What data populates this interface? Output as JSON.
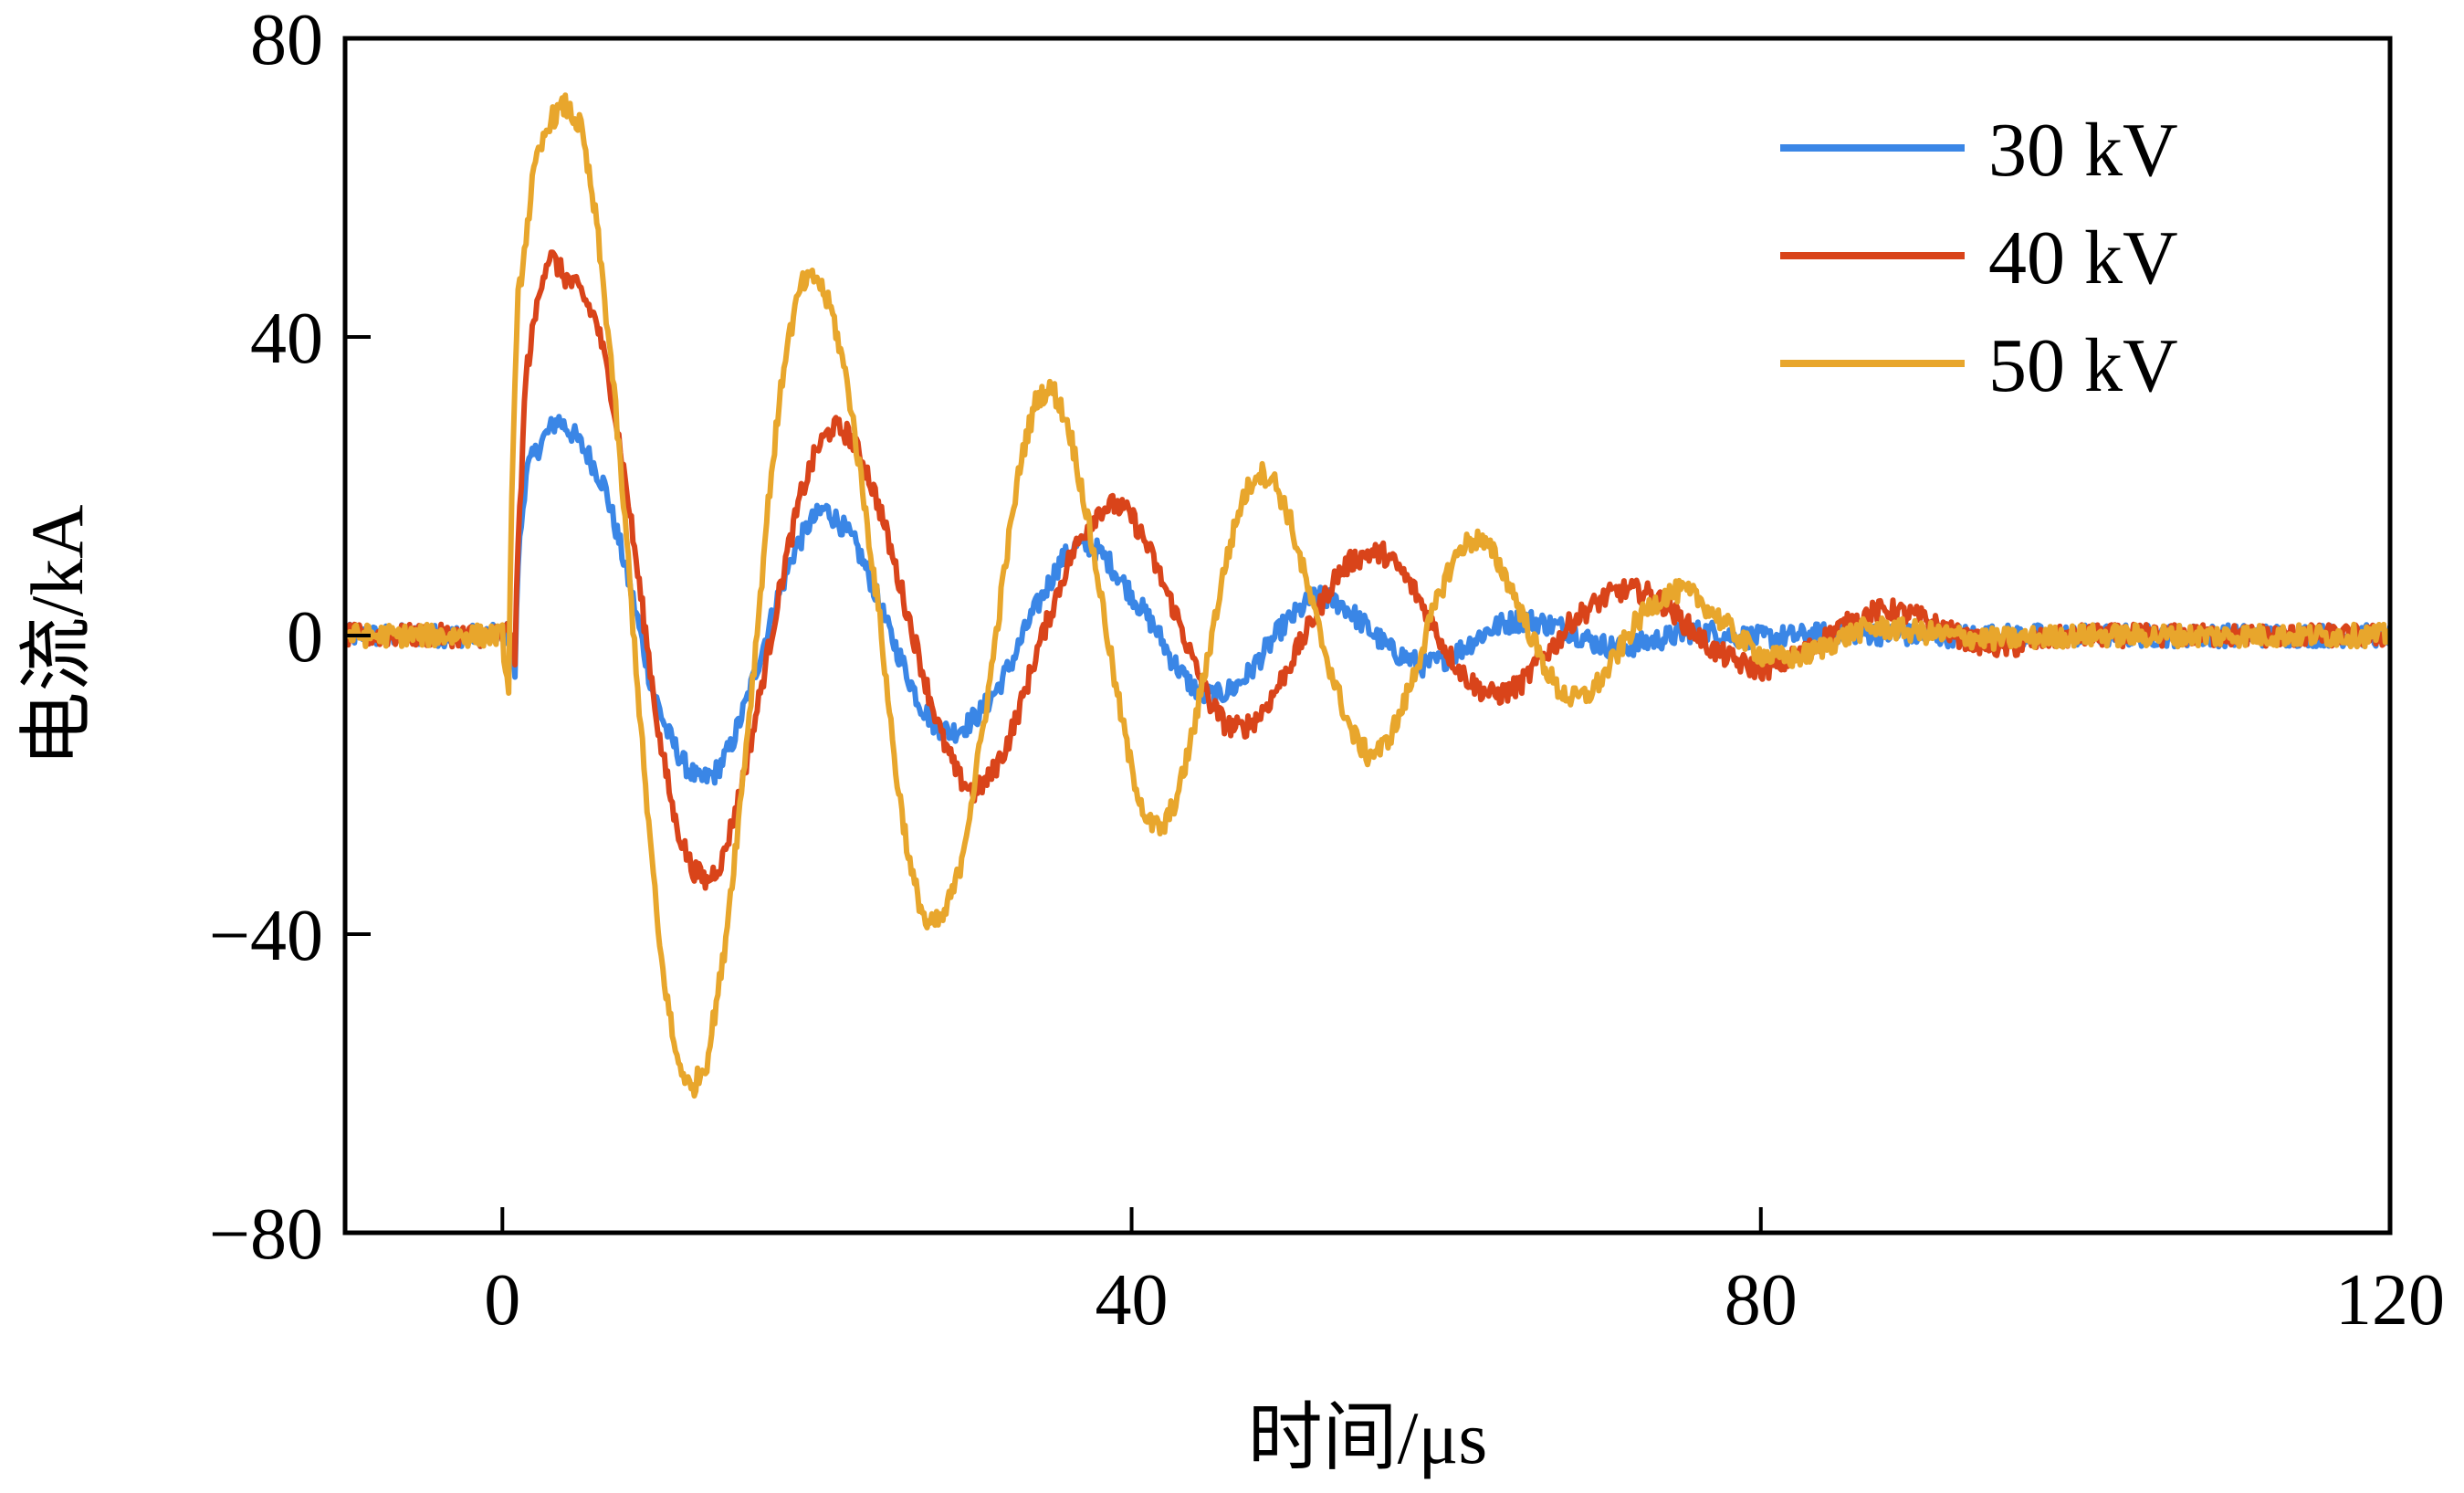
{
  "chart_data": {
    "type": "line",
    "title": "",
    "xlabel": "时间/μs",
    "ylabel": "电流/kA",
    "xlim": [
      -10,
      120
    ],
    "ylim": [
      -80,
      80
    ],
    "x_ticks": [
      0,
      40,
      80,
      120
    ],
    "y_ticks": [
      80,
      40,
      0,
      -40,
      -80
    ],
    "x_tick_labels": [
      "0",
      "40",
      "80",
      "120"
    ],
    "y_tick_labels": [
      "80",
      "40",
      "0",
      "−40",
      "−80"
    ],
    "grid": false,
    "legend_position": "top-right",
    "series": [
      {
        "name": "30 kV",
        "color": "#3a86e6",
        "noise": 1.5,
        "points": [
          [
            -10,
            0
          ],
          [
            0,
            0
          ],
          [
            0.5,
            0.5
          ],
          [
            0.8,
            -5
          ],
          [
            1,
            10
          ],
          [
            1.5,
            22
          ],
          [
            2.5,
            26
          ],
          [
            3.5,
            29
          ],
          [
            4.5,
            27
          ],
          [
            5.5,
            24
          ],
          [
            6.5,
            20
          ],
          [
            7.5,
            12
          ],
          [
            8.5,
            3
          ],
          [
            9.5,
            -7
          ],
          [
            10.5,
            -13
          ],
          [
            11.5,
            -17
          ],
          [
            12.5,
            -19.5
          ],
          [
            13.5,
            -18.5
          ],
          [
            14.5,
            -15
          ],
          [
            15.5,
            -9
          ],
          [
            16.5,
            -2
          ],
          [
            17.5,
            5
          ],
          [
            18.5,
            11
          ],
          [
            19.5,
            15
          ],
          [
            20.5,
            17
          ],
          [
            21.5,
            15
          ],
          [
            22.5,
            12
          ],
          [
            23.5,
            7
          ],
          [
            24.5,
            1
          ],
          [
            25.5,
            -4
          ],
          [
            26.5,
            -9
          ],
          [
            27.5,
            -12
          ],
          [
            28.5,
            -13
          ],
          [
            29.5,
            -12
          ],
          [
            30.5,
            -10
          ],
          [
            31.5,
            -7
          ],
          [
            32.5,
            -3
          ],
          [
            33.5,
            2
          ],
          [
            34.5,
            6
          ],
          [
            35.5,
            10
          ],
          [
            36.5,
            12
          ],
          [
            37.5,
            12
          ],
          [
            38.5,
            10
          ],
          [
            39.5,
            7
          ],
          [
            40.5,
            4
          ],
          [
            41.5,
            1
          ],
          [
            42.5,
            -3
          ],
          [
            43.5,
            -6
          ],
          [
            44.5,
            -8
          ],
          [
            45.5,
            -8
          ],
          [
            46.5,
            -7
          ],
          [
            47.5,
            -5
          ],
          [
            48.5,
            -2
          ],
          [
            49.5,
            1
          ],
          [
            50.5,
            3
          ],
          [
            51.5,
            5
          ],
          [
            52.5,
            5
          ],
          [
            53.5,
            4
          ],
          [
            54.5,
            2
          ],
          [
            55.5,
            0
          ],
          [
            56.5,
            -2
          ],
          [
            57.5,
            -3
          ],
          [
            58.5,
            -4
          ],
          [
            59.5,
            -3.5
          ],
          [
            60.5,
            -2.5
          ],
          [
            61.5,
            -1
          ],
          [
            62.5,
            0.5
          ],
          [
            63.5,
            1.5
          ],
          [
            64.5,
            2
          ],
          [
            65.5,
            2
          ],
          [
            66.5,
            1.5
          ],
          [
            67.5,
            1
          ],
          [
            68.5,
            0
          ],
          [
            69.5,
            -1
          ],
          [
            70.5,
            -1.5
          ],
          [
            71.5,
            -1.5
          ],
          [
            72.5,
            -1
          ],
          [
            73.5,
            -0.5
          ],
          [
            74.5,
            0
          ],
          [
            75.5,
            0.5
          ],
          [
            77,
            0.5
          ],
          [
            78,
            0
          ],
          [
            80,
            -0.3
          ],
          [
            83,
            0
          ],
          [
            85,
            0.5
          ],
          [
            90,
            0
          ],
          [
            100,
            0
          ],
          [
            120,
            0
          ]
        ]
      },
      {
        "name": "40 kV",
        "color": "#d9441a",
        "noise": 1.5,
        "points": [
          [
            -10,
            0
          ],
          [
            0,
            0
          ],
          [
            0.5,
            1
          ],
          [
            0.8,
            -3
          ],
          [
            1,
            12
          ],
          [
            1.5,
            35
          ],
          [
            2.5,
            48
          ],
          [
            3,
            51
          ],
          [
            4,
            48
          ],
          [
            5,
            46
          ],
          [
            6,
            42
          ],
          [
            7,
            32
          ],
          [
            8,
            18
          ],
          [
            9,
            2
          ],
          [
            10,
            -14
          ],
          [
            11,
            -25
          ],
          [
            12,
            -31
          ],
          [
            13,
            -33
          ],
          [
            14,
            -30
          ],
          [
            15,
            -22
          ],
          [
            16,
            -12
          ],
          [
            17,
            -1
          ],
          [
            18,
            10
          ],
          [
            19,
            19
          ],
          [
            20,
            25
          ],
          [
            21,
            28
          ],
          [
            22,
            27
          ],
          [
            23,
            23
          ],
          [
            24,
            17
          ],
          [
            25,
            9
          ],
          [
            26,
            1
          ],
          [
            27,
            -7
          ],
          [
            28,
            -14
          ],
          [
            29,
            -19
          ],
          [
            30,
            -21
          ],
          [
            31,
            -19
          ],
          [
            32,
            -15
          ],
          [
            33,
            -9
          ],
          [
            34,
            -2
          ],
          [
            35,
            4
          ],
          [
            36,
            10
          ],
          [
            37,
            14
          ],
          [
            38,
            17
          ],
          [
            39,
            17.5
          ],
          [
            40,
            16
          ],
          [
            41,
            12
          ],
          [
            42,
            7
          ],
          [
            43,
            2
          ],
          [
            44,
            -4
          ],
          [
            45,
            -9
          ],
          [
            46,
            -12
          ],
          [
            47,
            -12.5
          ],
          [
            48,
            -11
          ],
          [
            49,
            -8
          ],
          [
            50,
            -4
          ],
          [
            51,
            0
          ],
          [
            52,
            4
          ],
          [
            53,
            8
          ],
          [
            54,
            10
          ],
          [
            55,
            11
          ],
          [
            56,
            11
          ],
          [
            57,
            9
          ],
          [
            58,
            6
          ],
          [
            59,
            2
          ],
          [
            60,
            -2
          ],
          [
            61,
            -5
          ],
          [
            62,
            -7
          ],
          [
            63,
            -8
          ],
          [
            64,
            -7.5
          ],
          [
            65,
            -6
          ],
          [
            66,
            -3
          ],
          [
            67,
            -1
          ],
          [
            68,
            2
          ],
          [
            69,
            3.5
          ],
          [
            70,
            5
          ],
          [
            71,
            6
          ],
          [
            72,
            6
          ],
          [
            73,
            5.5
          ],
          [
            74,
            4
          ],
          [
            75,
            2
          ],
          [
            76,
            0
          ],
          [
            77,
            -2
          ],
          [
            78,
            -3
          ],
          [
            79,
            -4
          ],
          [
            80,
            -4.5
          ],
          [
            81,
            -4
          ],
          [
            82,
            -3
          ],
          [
            83,
            -2
          ],
          [
            84,
            -0.5
          ],
          [
            85,
            1
          ],
          [
            86,
            2
          ],
          [
            87,
            3
          ],
          [
            88,
            3.5
          ],
          [
            89,
            3
          ],
          [
            90,
            2.5
          ],
          [
            91,
            1.5
          ],
          [
            92,
            0.5
          ],
          [
            93,
            -0.5
          ],
          [
            94,
            -1
          ],
          [
            95,
            -1.5
          ],
          [
            96,
            -1.5
          ],
          [
            97,
            -1
          ],
          [
            98,
            -0.5
          ],
          [
            100,
            0
          ],
          [
            120,
            0
          ]
        ]
      },
      {
        "name": "50 kV",
        "color": "#e8a62c",
        "noise": 1.5,
        "points": [
          [
            -10,
            0
          ],
          [
            0,
            0
          ],
          [
            0.4,
            -8
          ],
          [
            0.6,
            20
          ],
          [
            1,
            45
          ],
          [
            2,
            62
          ],
          [
            3,
            69
          ],
          [
            4,
            71
          ],
          [
            5,
            68
          ],
          [
            6,
            55
          ],
          [
            7,
            35
          ],
          [
            8,
            10
          ],
          [
            9,
            -18
          ],
          [
            10,
            -42
          ],
          [
            11,
            -56
          ],
          [
            12,
            -61
          ],
          [
            13,
            -57
          ],
          [
            14,
            -44
          ],
          [
            15,
            -25
          ],
          [
            16,
            -4
          ],
          [
            17,
            20
          ],
          [
            18,
            38
          ],
          [
            19,
            47
          ],
          [
            20,
            48
          ],
          [
            21,
            43
          ],
          [
            22,
            33
          ],
          [
            23,
            18
          ],
          [
            24,
            2
          ],
          [
            25,
            -18
          ],
          [
            26,
            -32
          ],
          [
            27,
            -39
          ],
          [
            28,
            -38
          ],
          [
            29,
            -32
          ],
          [
            30,
            -20
          ],
          [
            31,
            -6
          ],
          [
            32,
            10
          ],
          [
            33,
            24
          ],
          [
            34,
            32
          ],
          [
            35,
            33
          ],
          [
            36,
            28
          ],
          [
            37,
            18
          ],
          [
            38,
            6
          ],
          [
            39,
            -7
          ],
          [
            40,
            -18
          ],
          [
            41,
            -25
          ],
          [
            42,
            -26
          ],
          [
            43,
            -21
          ],
          [
            44,
            -12
          ],
          [
            45,
            -1
          ],
          [
            46,
            10
          ],
          [
            47,
            18
          ],
          [
            48,
            22
          ],
          [
            49,
            21
          ],
          [
            50,
            16
          ],
          [
            51,
            8
          ],
          [
            52,
            0
          ],
          [
            53,
            -7
          ],
          [
            54,
            -13
          ],
          [
            55,
            -16
          ],
          [
            56,
            -15
          ],
          [
            57,
            -11
          ],
          [
            58,
            -5
          ],
          [
            59,
            2
          ],
          [
            60,
            8
          ],
          [
            61,
            12
          ],
          [
            62,
            13
          ],
          [
            63,
            11
          ],
          [
            64,
            7
          ],
          [
            65,
            2
          ],
          [
            66,
            -3
          ],
          [
            67,
            -7
          ],
          [
            68,
            -8.5
          ],
          [
            69,
            -8
          ],
          [
            70,
            -5.5
          ],
          [
            71,
            -2
          ],
          [
            72,
            1.5
          ],
          [
            73,
            4
          ],
          [
            74,
            5.5
          ],
          [
            75,
            6
          ],
          [
            76,
            5
          ],
          [
            77,
            3
          ],
          [
            78,
            1
          ],
          [
            79,
            -1
          ],
          [
            80,
            -2.5
          ],
          [
            81,
            -3
          ],
          [
            82,
            -3
          ],
          [
            83,
            -2.5
          ],
          [
            84,
            -1.5
          ],
          [
            85,
            -0.5
          ],
          [
            86,
            0.5
          ],
          [
            87,
            1
          ],
          [
            88,
            1
          ],
          [
            90,
            0.5
          ],
          [
            92,
            0
          ],
          [
            95,
            -0.5
          ],
          [
            100,
            0
          ],
          [
            120,
            0
          ]
        ]
      }
    ]
  }
}
